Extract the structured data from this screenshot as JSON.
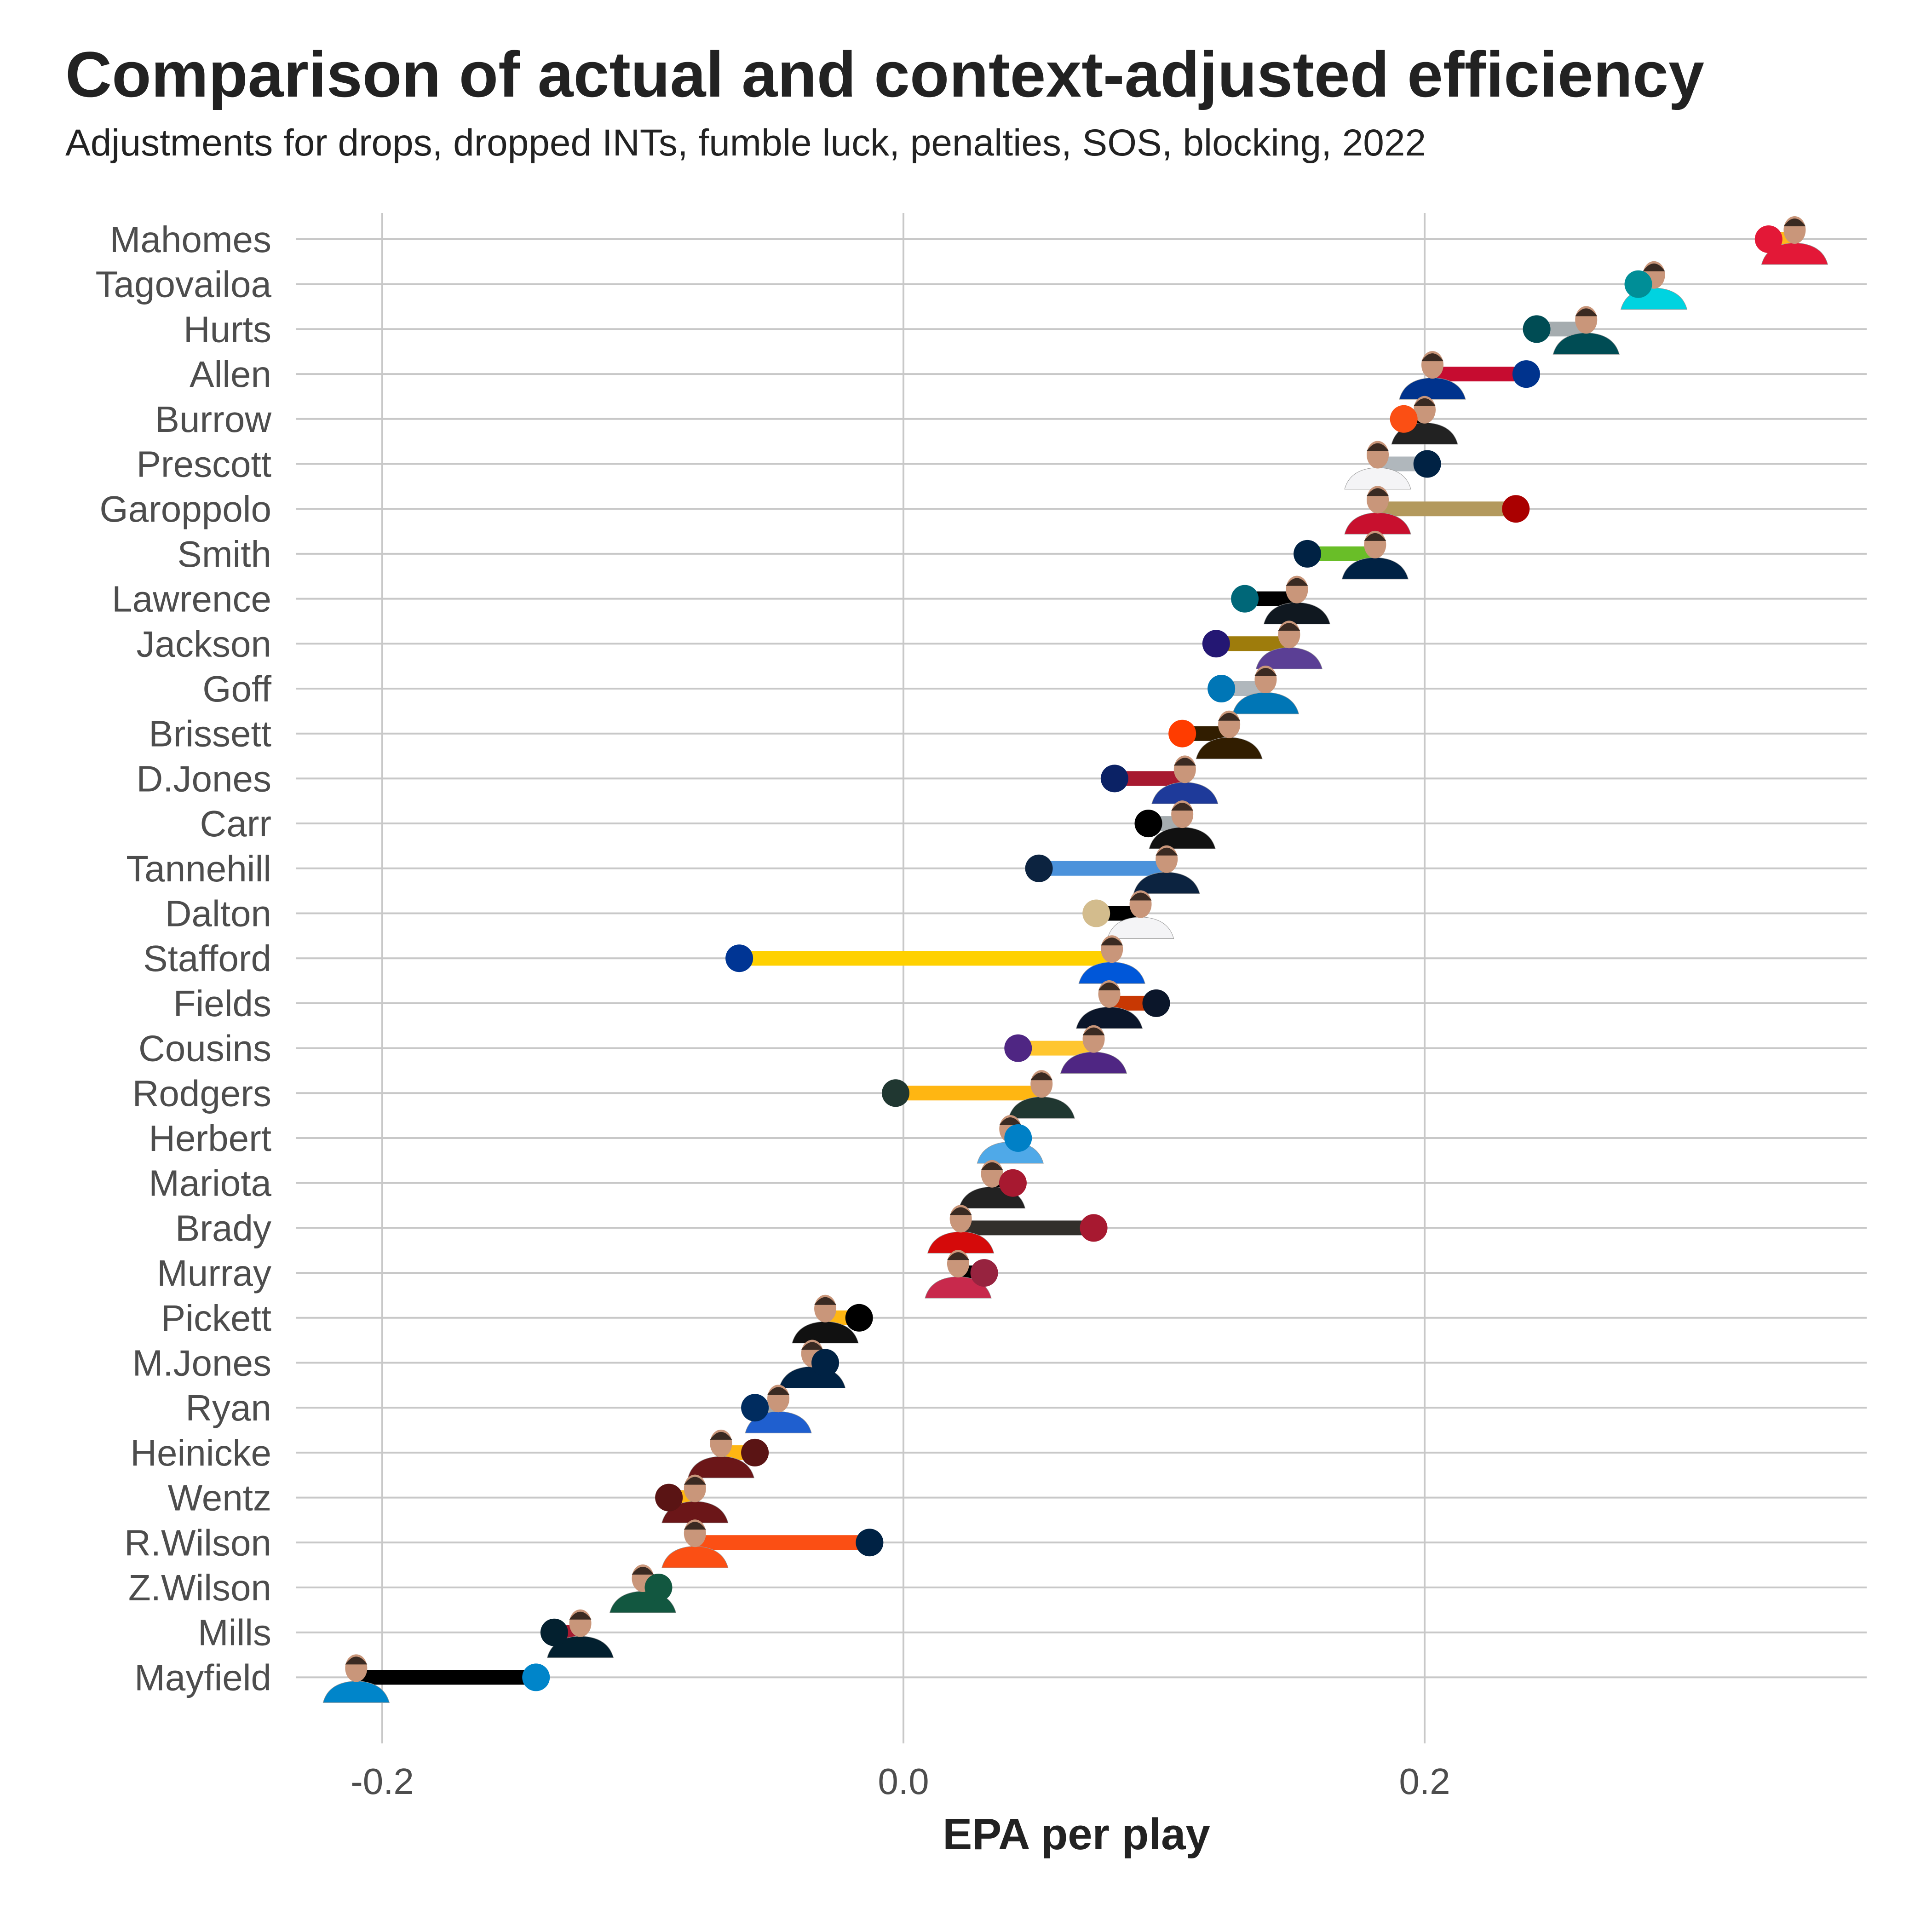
{
  "chart_data": {
    "type": "dumbbell",
    "title": "Comparison of actual and context-adjusted efficiency",
    "subtitle": "Adjustments for drops, dropped INTs, fumble luck, penalties, SOS, blocking, 2022",
    "xlabel": "EPA per play",
    "ylabel": "",
    "xlim": [
      -0.235,
      0.37
    ],
    "xticks": [
      -0.2,
      0.0,
      0.2
    ],
    "xtick_labels": [
      "-0.2",
      "0.0",
      "0.2"
    ],
    "grid": true,
    "series_description": {
      "actual": "headshot marker",
      "adjusted": "team-colored dot"
    },
    "rows": [
      {
        "name": "Mahomes",
        "actual": 0.342,
        "adjusted": 0.332,
        "line": "#FFB81C",
        "dot": "#E31837",
        "jersey": "#E31837"
      },
      {
        "name": "Tagovailoa",
        "actual": 0.288,
        "adjusted": 0.282,
        "line": "#FC4C02",
        "dot": "#008E97",
        "jersey": "#00D3E0"
      },
      {
        "name": "Hurts",
        "actual": 0.262,
        "adjusted": 0.243,
        "line": "#A5ACAF",
        "dot": "#004C54",
        "jersey": "#004C54"
      },
      {
        "name": "Allen",
        "actual": 0.203,
        "adjusted": 0.239,
        "line": "#C60C30",
        "dot": "#00338D",
        "jersey": "#00338D"
      },
      {
        "name": "Burrow",
        "actual": 0.2,
        "adjusted": 0.192,
        "line": "#000000",
        "dot": "#FB4F14",
        "jersey": "#222222"
      },
      {
        "name": "Prescott",
        "actual": 0.182,
        "adjusted": 0.201,
        "line": "#B0B7BC",
        "dot": "#002244",
        "jersey": "#F4F4F6"
      },
      {
        "name": "Garoppolo",
        "actual": 0.182,
        "adjusted": 0.235,
        "line": "#B3995D",
        "dot": "#AA0000",
        "jersey": "#C8102E"
      },
      {
        "name": "Smith",
        "actual": 0.181,
        "adjusted": 0.155,
        "line": "#69BE28",
        "dot": "#002244",
        "jersey": "#002244"
      },
      {
        "name": "Lawrence",
        "actual": 0.151,
        "adjusted": 0.131,
        "line": "#000000",
        "dot": "#006778",
        "jersey": "#101820"
      },
      {
        "name": "Jackson",
        "actual": 0.148,
        "adjusted": 0.12,
        "line": "#9E7C0C",
        "dot": "#241773",
        "jersey": "#5B3F95"
      },
      {
        "name": "Goff",
        "actual": 0.139,
        "adjusted": 0.122,
        "line": "#B0B7BC",
        "dot": "#0076B6",
        "jersey": "#0076B6"
      },
      {
        "name": "Brissett",
        "actual": 0.125,
        "adjusted": 0.107,
        "line": "#311D00",
        "dot": "#FF3C00",
        "jersey": "#311D00"
      },
      {
        "name": "D.Jones",
        "actual": 0.108,
        "adjusted": 0.081,
        "line": "#A71930",
        "dot": "#0B2265",
        "jersey": "#1E3A9A"
      },
      {
        "name": "Carr",
        "actual": 0.107,
        "adjusted": 0.094,
        "line": "#A5ACAF",
        "dot": "#000000",
        "jersey": "#111111"
      },
      {
        "name": "Tannehill",
        "actual": 0.101,
        "adjusted": 0.052,
        "line": "#4B92DB",
        "dot": "#0C2340",
        "jersey": "#0C2340"
      },
      {
        "name": "Dalton",
        "actual": 0.091,
        "adjusted": 0.074,
        "line": "#000000",
        "dot": "#D3BC8D",
        "jersey": "#F4F4F6"
      },
      {
        "name": "Stafford",
        "actual": 0.08,
        "adjusted": -0.063,
        "line": "#FFD100",
        "dot": "#003594",
        "jersey": "#0057D9"
      },
      {
        "name": "Fields",
        "actual": 0.079,
        "adjusted": 0.097,
        "line": "#C83803",
        "dot": "#0B162A",
        "jersey": "#0B162A"
      },
      {
        "name": "Cousins",
        "actual": 0.073,
        "adjusted": 0.044,
        "line": "#FFC62F",
        "dot": "#4F2683",
        "jersey": "#4F2683"
      },
      {
        "name": "Rodgers",
        "actual": 0.053,
        "adjusted": -0.003,
        "line": "#FFB612",
        "dot": "#203731",
        "jersey": "#203731"
      },
      {
        "name": "Herbert",
        "actual": 0.041,
        "adjusted": 0.044,
        "line": "#FFC20E",
        "dot": "#0080C6",
        "jersey": "#4FA9E8"
      },
      {
        "name": "Mariota",
        "actual": 0.034,
        "adjusted": 0.042,
        "line": "#000000",
        "dot": "#A71930",
        "jersey": "#222222"
      },
      {
        "name": "Brady",
        "actual": 0.022,
        "adjusted": 0.073,
        "line": "#322F2B",
        "dot": "#A71930",
        "jersey": "#D50A0A"
      },
      {
        "name": "Murray",
        "actual": 0.021,
        "adjusted": 0.031,
        "line": "#000000",
        "dot": "#97233F",
        "jersey": "#C8294C"
      },
      {
        "name": "Pickett",
        "actual": -0.03,
        "adjusted": -0.017,
        "line": "#FFB612",
        "dot": "#000000",
        "jersey": "#111111"
      },
      {
        "name": "M.Jones",
        "actual": -0.035,
        "adjusted": -0.03,
        "line": "#C60C30",
        "dot": "#002244",
        "jersey": "#002244"
      },
      {
        "name": "Ryan",
        "actual": -0.048,
        "adjusted": -0.057,
        "line": "#A2AAAD",
        "dot": "#002C5F",
        "jersey": "#1F5FCF"
      },
      {
        "name": "Heinicke",
        "actual": -0.07,
        "adjusted": -0.057,
        "line": "#FFB612",
        "dot": "#5A1414",
        "jersey": "#6B1618"
      },
      {
        "name": "Wentz",
        "actual": -0.08,
        "adjusted": -0.09,
        "line": "#FFB612",
        "dot": "#5A1414",
        "jersey": "#6B1618"
      },
      {
        "name": "R.Wilson",
        "actual": -0.08,
        "adjusted": -0.013,
        "line": "#FB4F14",
        "dot": "#002244",
        "jersey": "#FB4F14"
      },
      {
        "name": "Z.Wilson",
        "actual": -0.1,
        "adjusted": -0.094,
        "line": "#000000",
        "dot": "#125740",
        "jersey": "#125740"
      },
      {
        "name": "Mills",
        "actual": -0.124,
        "adjusted": -0.134,
        "line": "#A71930",
        "dot": "#03202F",
        "jersey": "#03202F"
      },
      {
        "name": "Mayfield",
        "actual": -0.21,
        "adjusted": -0.141,
        "line": "#000000",
        "dot": "#0085CA",
        "jersey": "#0085CA"
      }
    ]
  }
}
